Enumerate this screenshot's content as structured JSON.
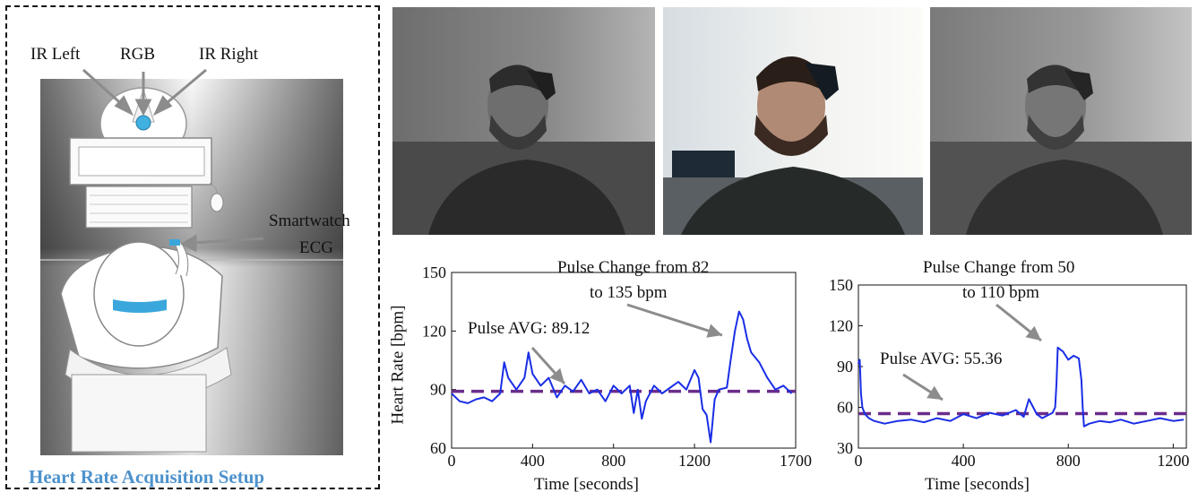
{
  "setup": {
    "title": "Heart Rate Acquisition Setup",
    "labels": {
      "ir_left": "IR Left",
      "rgb": "RGB",
      "ir_right": "IR Right",
      "smartwatch": "Smartwatch",
      "ecg": "ECG"
    }
  },
  "photos": [
    {
      "tone": "IR left"
    },
    {
      "tone": "RGB"
    },
    {
      "tone": "IR right"
    }
  ],
  "colors": {
    "series": "#1a2ee6",
    "avg": "#6b2d8c",
    "arrow": "#8c8c8c",
    "title": "#4d92cc"
  },
  "chart_data": [
    {
      "type": "line",
      "xlabel": "Time [seconds]",
      "ylabel": "Heart Rate [bpm]",
      "xlim": [
        0,
        1700
      ],
      "ylim": [
        60,
        150
      ],
      "xticks": [
        0,
        400,
        800,
        1200,
        1700
      ],
      "yticks": [
        60,
        90,
        120,
        150
      ],
      "avg": 89.12,
      "annotations": {
        "avg_text": "Pulse AVG: 89.12",
        "change_line1": "Pulse Change from 82",
        "change_line2": "to 135 bpm"
      },
      "series": [
        {
          "x": [
            0,
            40,
            80,
            120,
            160,
            200,
            240,
            260,
            280,
            320,
            360,
            380,
            400,
            440,
            480,
            520,
            560,
            600,
            640,
            680,
            720,
            760,
            800,
            840,
            880,
            900,
            920,
            940,
            960,
            1000,
            1040,
            1080,
            1120,
            1160,
            1200,
            1220,
            1240,
            1260,
            1280,
            1300,
            1320,
            1360,
            1380,
            1400,
            1420,
            1440,
            1460,
            1480,
            1520,
            1560,
            1600,
            1640,
            1680
          ],
          "y": [
            88,
            84,
            83,
            85,
            86,
            84,
            88,
            104,
            96,
            90,
            96,
            109,
            98,
            92,
            96,
            86,
            92,
            89,
            95,
            88,
            90,
            84,
            92,
            88,
            92,
            78,
            90,
            75,
            84,
            92,
            88,
            91,
            94,
            90,
            100,
            96,
            80,
            77,
            63,
            85,
            90,
            91,
            106,
            120,
            130,
            126,
            116,
            109,
            104,
            96,
            90,
            92,
            88
          ]
        }
      ]
    },
    {
      "type": "line",
      "xlabel": "Time [seconds]",
      "ylabel": "",
      "xlim": [
        0,
        1250
      ],
      "ylim": [
        30,
        150
      ],
      "xticks": [
        0,
        400,
        800,
        1200
      ],
      "yticks": [
        30,
        60,
        90,
        120,
        150
      ],
      "avg": 55.36,
      "annotations": {
        "avg_text": "Pulse AVG: 55.36",
        "change_line1": "Pulse Change from 50",
        "change_line2": "to 110 bpm"
      },
      "series": [
        {
          "x": [
            0,
            5,
            10,
            15,
            25,
            40,
            60,
            100,
            150,
            200,
            250,
            300,
            350,
            400,
            450,
            500,
            550,
            600,
            630,
            650,
            680,
            700,
            720,
            740,
            750,
            755,
            760,
            780,
            800,
            820,
            840,
            850,
            855,
            860,
            880,
            920,
            960,
            1000,
            1050,
            1100,
            1150,
            1200,
            1240
          ],
          "y": [
            92,
            95,
            70,
            60,
            55,
            52,
            50,
            48,
            50,
            51,
            49,
            52,
            50,
            55,
            52,
            56,
            54,
            58,
            53,
            66,
            55,
            52,
            54,
            56,
            60,
            78,
            104,
            101,
            95,
            98,
            96,
            80,
            60,
            46,
            48,
            50,
            49,
            51,
            48,
            50,
            52,
            50,
            51
          ]
        }
      ]
    }
  ]
}
